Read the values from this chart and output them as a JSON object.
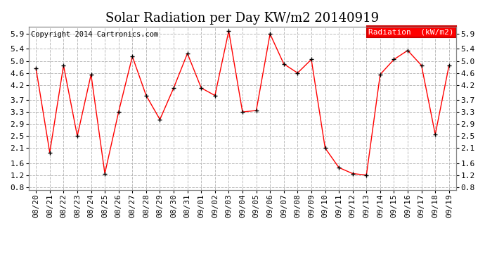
{
  "title": "Solar Radiation per Day KW/m2 20140919",
  "copyright": "Copyright 2014 Cartronics.com",
  "legend_label": "Radiation  (kW/m2)",
  "dates": [
    "08/20",
    "08/21",
    "08/22",
    "08/23",
    "08/24",
    "08/25",
    "08/26",
    "08/27",
    "08/28",
    "08/29",
    "08/30",
    "08/31",
    "09/01",
    "09/02",
    "09/03",
    "09/04",
    "09/05",
    "09/06",
    "09/07",
    "09/08",
    "09/09",
    "09/10",
    "09/11",
    "09/12",
    "09/13",
    "09/14",
    "09/15",
    "09/16",
    "09/17",
    "09/18",
    "09/19"
  ],
  "values": [
    4.75,
    1.95,
    4.85,
    2.5,
    4.55,
    1.25,
    3.3,
    5.15,
    3.85,
    3.05,
    4.1,
    5.25,
    4.1,
    3.85,
    6.0,
    3.3,
    3.35,
    5.9,
    4.9,
    4.6,
    5.05,
    2.1,
    1.45,
    1.25,
    1.2,
    4.55,
    5.05,
    5.35,
    4.85,
    2.55,
    4.85
  ],
  "ylim": [
    0.7,
    6.15
  ],
  "yticks": [
    0.8,
    1.2,
    1.6,
    2.1,
    2.5,
    2.9,
    3.3,
    3.7,
    4.2,
    4.6,
    5.0,
    5.4,
    5.9
  ],
  "line_color": "red",
  "marker_color": "black",
  "bg_color": "#ffffff",
  "plot_bg_color": "#ffffff",
  "grid_color": "#bbbbbb",
  "legend_bg": "red",
  "legend_text_color": "white",
  "title_fontsize": 13,
  "copyright_fontsize": 7.5,
  "tick_fontsize": 8,
  "legend_fontsize": 8
}
